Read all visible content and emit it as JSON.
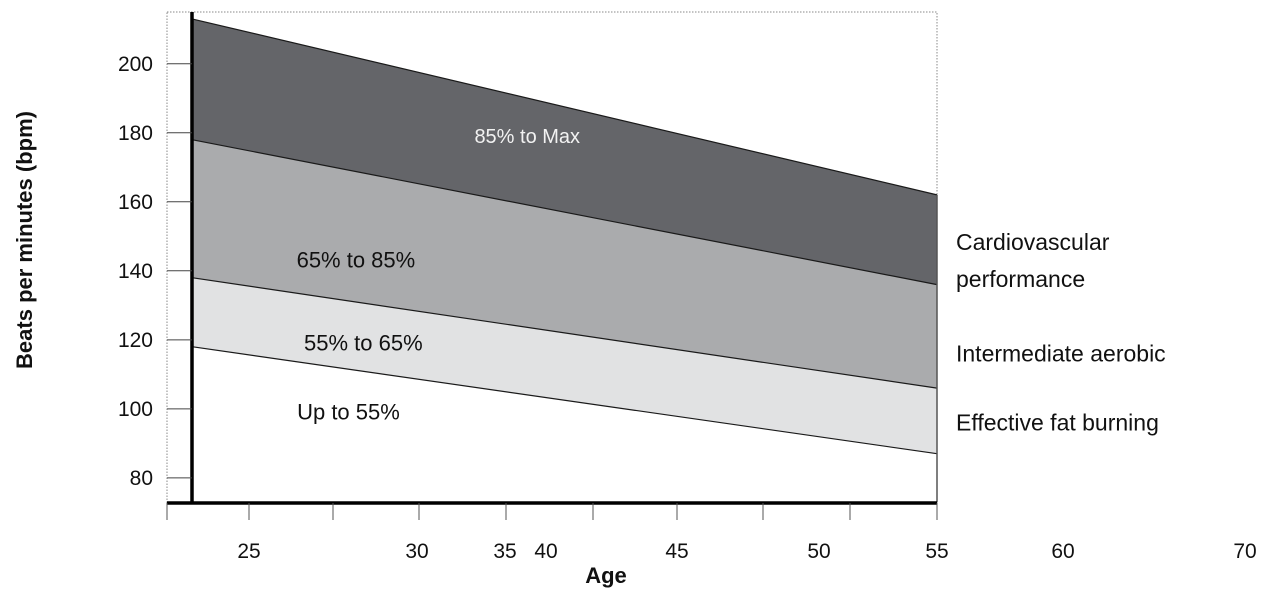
{
  "chart_data": {
    "type": "area",
    "xlabel": "Age",
    "ylabel": "Beats per minutes (bpm)",
    "x_ticks": [
      {
        "label": "25"
      },
      {
        "label": "30"
      },
      {
        "label": "35"
      },
      {
        "label": "40"
      },
      {
        "label": "45"
      },
      {
        "label": "50"
      },
      {
        "label": "55"
      },
      {
        "label": "60"
      },
      {
        "label": "70"
      }
    ],
    "y_ticks": [
      {
        "value": 80,
        "label": "80"
      },
      {
        "value": 100,
        "label": "100"
      },
      {
        "value": 120,
        "label": "120"
      },
      {
        "value": 140,
        "label": "140"
      },
      {
        "value": 160,
        "label": "160"
      },
      {
        "value": 180,
        "label": "180"
      },
      {
        "value": 200,
        "label": "200"
      }
    ],
    "ylim": [
      73,
      215
    ],
    "x_start": "20",
    "x_end": "55",
    "boundaries": [
      {
        "name": "Max",
        "start": 213,
        "end": 162
      },
      {
        "name": "85%",
        "start": 178,
        "end": 136
      },
      {
        "name": "65%",
        "start": 138,
        "end": 106
      },
      {
        "name": "55%",
        "start": 118,
        "end": 87
      }
    ],
    "zones": [
      {
        "label": "85% to Max",
        "from": "85%",
        "to": "Max",
        "color": "#646569",
        "label_color": "#f2f2f2",
        "label_at": "0.45",
        "label_value": 179
      },
      {
        "label": "65% to 85%",
        "from": "65%",
        "to": "85%",
        "color": "#aaabad",
        "label_color": "#111111",
        "label_at": "0.22",
        "label_value": 143
      },
      {
        "label": "55% to 65%",
        "from": "55%",
        "to": "65%",
        "color": "#e1e2e3",
        "label_color": "#111111",
        "label_at": "0.23",
        "label_value": 119
      },
      {
        "label": "Up to 55%",
        "from": "base",
        "to": "55%",
        "color": "#ffffff",
        "label_color": "#111111",
        "label_at": "0.21",
        "label_value": 99
      }
    ],
    "side_labels": [
      {
        "lines": [
          "Cardiovascular",
          "performance"
        ],
        "value": 143
      },
      {
        "lines": [
          "Intermediate aerobic"
        ],
        "value": 116
      },
      {
        "lines": [
          "Effective fat burning"
        ],
        "value": 96
      }
    ],
    "colors": {
      "axis": "#000000",
      "frame": "#8a8a8a",
      "boundary": "#1a1a1a",
      "max_zone": "#646569",
      "mid_zone": "#aaabad",
      "low_zone": "#e1e2e3",
      "base_zone": "#ffffff"
    },
    "grid": false,
    "legend": "none"
  }
}
